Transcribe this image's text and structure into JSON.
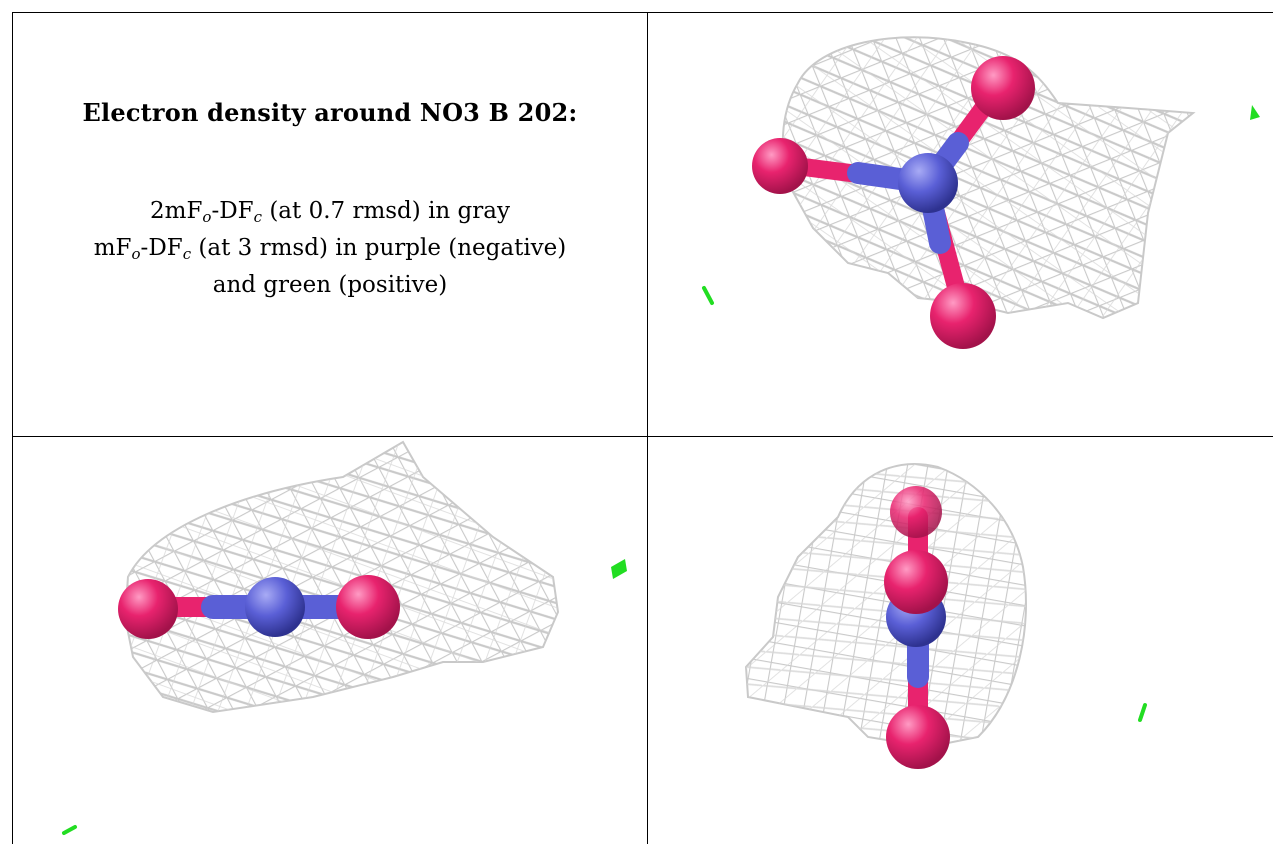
{
  "caption": {
    "title": "Electron density around NO3 B 202:",
    "line1": {
      "a": "2mF",
      "s1": "o",
      "b": "-DF",
      "s2": "c",
      "c": " (at 0.7 rmsd) in gray"
    },
    "line2": {
      "a": "mF",
      "s1": "o",
      "b": "-DF",
      "s2": "c",
      "c": " (at 3 rmsd) in purple (negative)"
    },
    "line3": "and green (positive)"
  },
  "panels": [
    {
      "id": "view-top-right"
    },
    {
      "id": "view-bottom-left"
    },
    {
      "id": "view-bottom-right"
    }
  ],
  "colors": {
    "mesh": "#c9c9c9",
    "oxygen": "#e8236e",
    "nitrogen": "#5a5fd6",
    "positive": "#22dd22",
    "border": "#000000"
  }
}
